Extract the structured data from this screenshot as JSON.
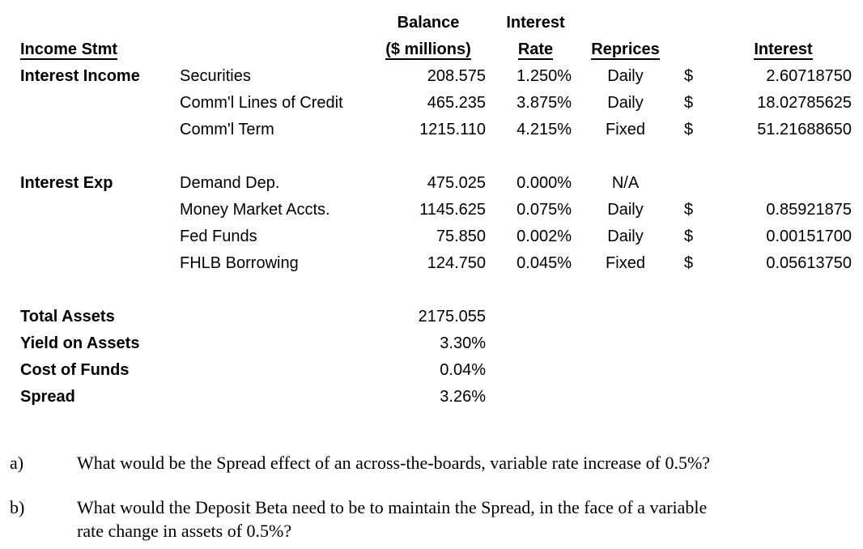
{
  "table": {
    "header": {
      "col_label": "Income Stmt",
      "balance_line1": "Balance",
      "balance_line2": "($ millions)",
      "rate_line1": "Interest",
      "rate_line2": "Rate",
      "reprices": "Reprices",
      "interest": "Interest"
    },
    "sections": [
      {
        "label": "Interest Income",
        "rows": [
          {
            "item": "Securities",
            "balance": "208.575",
            "rate": "1.250%",
            "reprices": "Daily",
            "currency": "$",
            "interest": "2.60718750"
          },
          {
            "item": "Comm'l Lines of Credit",
            "balance": "465.235",
            "rate": "3.875%",
            "reprices": "Daily",
            "currency": "$",
            "interest": "18.02785625"
          },
          {
            "item": "Comm'l Term",
            "balance": "1215.110",
            "rate": "4.215%",
            "reprices": "Fixed",
            "currency": "$",
            "interest": "51.21688650"
          }
        ]
      },
      {
        "label": "Interest Exp",
        "rows": [
          {
            "item": "Demand Dep.",
            "balance": "475.025",
            "rate": "0.000%",
            "reprices": "N/A",
            "currency": "",
            "interest": ""
          },
          {
            "item": "Money Market Accts.",
            "balance": "1145.625",
            "rate": "0.075%",
            "reprices": "Daily",
            "currency": "$",
            "interest": "0.85921875"
          },
          {
            "item": "Fed Funds",
            "balance": "75.850",
            "rate": "0.002%",
            "reprices": "Daily",
            "currency": "$",
            "interest": "0.00151700"
          },
          {
            "item": "FHLB Borrowing",
            "balance": "124.750",
            "rate": "0.045%",
            "reprices": "Fixed",
            "currency": "$",
            "interest": "0.05613750"
          }
        ]
      }
    ],
    "summary": [
      {
        "label": "Total Assets",
        "value": "2175.055"
      },
      {
        "label": "Yield on Assets",
        "value": "3.30%"
      },
      {
        "label": "Cost of Funds",
        "value": "0.04%"
      },
      {
        "label": "Spread",
        "value": "3.26%"
      }
    ]
  },
  "questions": [
    {
      "marker": "a)",
      "lines": [
        "What would be the Spread effect of an across-the-boards, variable rate increase of 0.5%?"
      ]
    },
    {
      "marker": "b)",
      "lines": [
        "What would the Deposit Beta need to be to maintain the Spread, in the face of a variable",
        "rate change in assets of 0.5%?"
      ]
    }
  ]
}
